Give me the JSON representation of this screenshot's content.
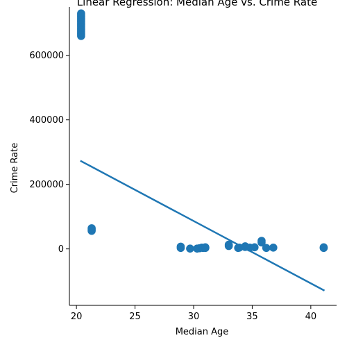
{
  "chart_data": {
    "type": "scatter",
    "title": "Linear Regression: Median Age vs. Crime Rate",
    "xlabel": "Median Age",
    "ylabel": "Crime Rate",
    "xlim": [
      19.4,
      42.2
    ],
    "ylim": [
      -175000,
      750000
    ],
    "x_ticks": [
      20,
      25,
      30,
      35,
      40
    ],
    "y_ticks": [
      0,
      200000,
      400000,
      600000
    ],
    "grid": false,
    "legend": "none",
    "colors": {
      "points": "#1f77b4",
      "line": "#1f77b4"
    },
    "points": [
      {
        "x": 20.4,
        "y": 660000
      },
      {
        "x": 20.4,
        "y": 665000
      },
      {
        "x": 20.4,
        "y": 670000
      },
      {
        "x": 20.4,
        "y": 675000
      },
      {
        "x": 20.4,
        "y": 680000
      },
      {
        "x": 20.4,
        "y": 685000
      },
      {
        "x": 20.4,
        "y": 690000
      },
      {
        "x": 20.4,
        "y": 695000
      },
      {
        "x": 20.4,
        "y": 700000
      },
      {
        "x": 20.4,
        "y": 705000
      },
      {
        "x": 20.4,
        "y": 710000
      },
      {
        "x": 20.4,
        "y": 715000
      },
      {
        "x": 20.4,
        "y": 720000
      },
      {
        "x": 20.4,
        "y": 725000
      },
      {
        "x": 20.4,
        "y": 730000
      },
      {
        "x": 21.3,
        "y": 56000
      },
      {
        "x": 21.3,
        "y": 60000
      },
      {
        "x": 21.3,
        "y": 64000
      },
      {
        "x": 28.9,
        "y": 3000
      },
      {
        "x": 28.9,
        "y": 7000
      },
      {
        "x": 29.7,
        "y": 1000
      },
      {
        "x": 30.3,
        "y": 1000
      },
      {
        "x": 30.5,
        "y": 2000
      },
      {
        "x": 30.7,
        "y": 4000
      },
      {
        "x": 30.8,
        "y": 3000
      },
      {
        "x": 31.0,
        "y": 3000
      },
      {
        "x": 31.0,
        "y": 5000
      },
      {
        "x": 33.0,
        "y": 9000
      },
      {
        "x": 33.0,
        "y": 13000
      },
      {
        "x": 33.8,
        "y": 3000
      },
      {
        "x": 33.9,
        "y": 4000
      },
      {
        "x": 34.4,
        "y": 6000
      },
      {
        "x": 34.4,
        "y": 8000
      },
      {
        "x": 34.8,
        "y": 4000
      },
      {
        "x": 35.2,
        "y": 5000
      },
      {
        "x": 35.8,
        "y": 20000
      },
      {
        "x": 35.8,
        "y": 25000
      },
      {
        "x": 36.2,
        "y": 3000
      },
      {
        "x": 36.8,
        "y": 4000
      },
      {
        "x": 41.1,
        "y": 3000
      },
      {
        "x": 41.1,
        "y": 5000
      }
    ],
    "regression": {
      "x": [
        20.4,
        41.1
      ],
      "y": [
        272000,
        -128000
      ]
    }
  }
}
